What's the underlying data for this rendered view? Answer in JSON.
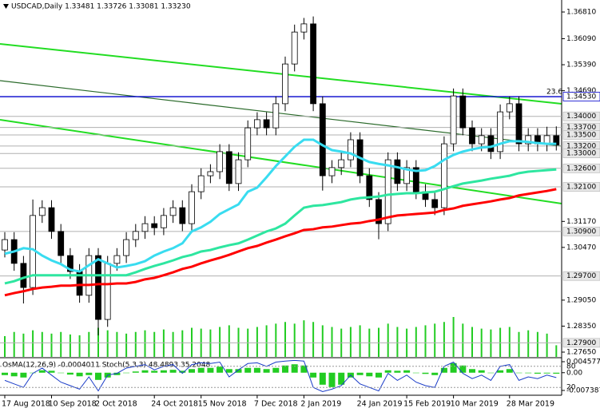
{
  "chart_data": {
    "type": "candlestick",
    "title": "USDCAD,Daily  1.33481 1.33726 1.33081 1.33230",
    "indicator_title": "OsMA(12,26,9) -0.0004011  Stoch(5,3,3) 48.4893 35.2048",
    "fib_label": "23.6",
    "categories": [
      "17 Aug 2018",
      null,
      null,
      null,
      null,
      "10 Sep 2018",
      null,
      null,
      null,
      null,
      "2 Oct 2018",
      null,
      null,
      null,
      null,
      null,
      "24 Oct 2018",
      null,
      null,
      null,
      null,
      "15 Nov 2018",
      null,
      null,
      null,
      null,
      null,
      "7 Dec 2018",
      null,
      null,
      null,
      null,
      "2 Jan 2019",
      null,
      null,
      null,
      null,
      null,
      "24 Jan 2019",
      null,
      null,
      null,
      null,
      "15 Feb 2019",
      null,
      null,
      null,
      null,
      "10 Mar 2019",
      null,
      null,
      null,
      null,
      null,
      "28 Mar 2019",
      null,
      null,
      null,
      null,
      null
    ],
    "open": [
      1.304,
      1.3068,
      1.3004,
      1.2939,
      1.3133,
      1.3154,
      1.309,
      1.3025,
      1.2982,
      1.2918,
      1.3025,
      1.2853,
      1.3004,
      1.3025,
      1.3068,
      1.309,
      1.3111,
      1.31,
      1.3133,
      1.3154,
      1.3111,
      1.3197,
      1.324,
      1.3251,
      1.3305,
      1.3219,
      1.3283,
      1.3369,
      1.3391,
      1.3369,
      1.3434,
      1.3541,
      1.3627,
      1.3649,
      1.3434,
      1.324,
      1.3262,
      1.3283,
      1.3337,
      1.324,
      1.3176,
      1.3111,
      1.3283,
      1.3219,
      1.3262,
      1.3197,
      1.3176,
      1.3154,
      1.3326,
      1.3455,
      1.3369,
      1.3326,
      1.3348,
      1.3305,
      1.3412,
      1.3434,
      1.3326,
      1.3348,
      1.3326,
      1.3348
    ],
    "high": [
      1.3088,
      1.3088,
      1.3024,
      1.3176,
      1.3174,
      1.3174,
      1.311,
      1.3045,
      1.3002,
      1.3045,
      1.3045,
      1.3024,
      1.3045,
      1.3088,
      1.311,
      1.3131,
      1.3131,
      1.3153,
      1.3174,
      1.3174,
      1.3217,
      1.326,
      1.3271,
      1.3325,
      1.3325,
      1.3303,
      1.3389,
      1.3411,
      1.3411,
      1.3454,
      1.3561,
      1.3647,
      1.3665,
      1.3669,
      1.3454,
      1.3282,
      1.3303,
      1.3357,
      1.3357,
      1.326,
      1.3196,
      1.3303,
      1.3303,
      1.3282,
      1.3282,
      1.3217,
      1.3196,
      1.3346,
      1.3475,
      1.3475,
      1.3389,
      1.3368,
      1.3368,
      1.3432,
      1.3454,
      1.3454,
      1.3368,
      1.3368,
      1.3372,
      1.3373
    ],
    "low": [
      1.302,
      1.2984,
      1.2896,
      1.2919,
      1.3113,
      1.307,
      1.3005,
      1.2962,
      1.2898,
      1.2898,
      1.281,
      1.2833,
      1.2984,
      1.3005,
      1.3048,
      1.307,
      1.308,
      1.308,
      1.3113,
      1.3091,
      1.3091,
      1.3177,
      1.322,
      1.3231,
      1.3199,
      1.3199,
      1.3263,
      1.3349,
      1.3349,
      1.3349,
      1.3414,
      1.3521,
      1.3607,
      1.3414,
      1.32,
      1.322,
      1.3242,
      1.3263,
      1.322,
      1.3156,
      1.3069,
      1.3091,
      1.3199,
      1.3199,
      1.3177,
      1.3156,
      1.3134,
      1.3134,
      1.3306,
      1.3349,
      1.3306,
      1.3306,
      1.3285,
      1.3285,
      1.3392,
      1.3306,
      1.3306,
      1.3306,
      1.3306,
      1.3308
    ],
    "close": [
      1.3068,
      1.3004,
      1.2939,
      1.3133,
      1.3154,
      1.309,
      1.3025,
      1.2982,
      1.2918,
      1.3025,
      1.2853,
      1.3004,
      1.3025,
      1.3068,
      1.309,
      1.3111,
      1.31,
      1.3133,
      1.3154,
      1.3111,
      1.3197,
      1.324,
      1.3251,
      1.3305,
      1.3219,
      1.3283,
      1.3369,
      1.3391,
      1.3369,
      1.3434,
      1.3541,
      1.3627,
      1.3649,
      1.3434,
      1.324,
      1.3262,
      1.3283,
      1.3337,
      1.324,
      1.3176,
      1.3111,
      1.3283,
      1.3219,
      1.3262,
      1.3197,
      1.3176,
      1.3154,
      1.3326,
      1.3455,
      1.3369,
      1.3326,
      1.3348,
      1.3305,
      1.3412,
      1.3434,
      1.3326,
      1.3348,
      1.3326,
      1.3348,
      1.3323
    ],
    "candle_up_color": "#ffffff",
    "candle_down_color": "#000000",
    "series": [
      {
        "color": "#39dcf0",
        "values": [
          1.303,
          1.3036,
          1.3045,
          1.3042,
          1.3025,
          1.3012,
          1.3002,
          1.2987,
          1.2982,
          1.2999,
          1.3015,
          1.3004,
          1.2993,
          1.2997,
          1.3002,
          1.301,
          1.3025,
          1.3036,
          1.3045,
          1.3058,
          1.309,
          1.3101,
          1.3116,
          1.3137,
          1.315,
          1.3163,
          1.3197,
          1.3208,
          1.3236,
          1.3266,
          1.3292,
          1.3318,
          1.3337,
          1.3337,
          1.3322,
          1.3309,
          1.3305,
          1.33,
          1.3288,
          1.3277,
          1.3272,
          1.3268,
          1.3263,
          1.3257,
          1.3253,
          1.3255,
          1.3266,
          1.3283,
          1.3296,
          1.3305,
          1.3311,
          1.3316,
          1.3318,
          1.3326,
          1.3333,
          1.3333,
          1.3331,
          1.3328,
          1.3326,
          1.3326
        ]
      },
      {
        "color": "#2ee6a0",
        "values": [
          1.295,
          1.2956,
          1.2965,
          1.2972,
          1.2972,
          1.2972,
          1.2972,
          1.2972,
          1.2972,
          1.2972,
          1.2972,
          1.2972,
          1.2972,
          1.2972,
          1.298,
          1.2989,
          1.2997,
          1.3004,
          1.3012,
          1.3021,
          1.3027,
          1.3036,
          1.304,
          1.3047,
          1.3053,
          1.3058,
          1.3068,
          1.3079,
          1.309,
          1.3098,
          1.3111,
          1.3133,
          1.3154,
          1.3159,
          1.3161,
          1.3165,
          1.3169,
          1.3176,
          1.318,
          1.3182,
          1.3184,
          1.3189,
          1.3191,
          1.3193,
          1.3193,
          1.3195,
          1.3197,
          1.3204,
          1.3212,
          1.3219,
          1.3223,
          1.3227,
          1.3232,
          1.3236,
          1.324,
          1.3247,
          1.3251,
          1.3253,
          1.3255,
          1.3257
        ]
      },
      {
        "color": "#ff0000",
        "values": [
          1.2918,
          1.2924,
          1.2929,
          1.2935,
          1.2939,
          1.2941,
          1.2944,
          1.2944,
          1.2946,
          1.2946,
          1.2948,
          1.2948,
          1.295,
          1.295,
          1.2954,
          1.2961,
          1.2965,
          1.2972,
          1.298,
          1.2989,
          1.2995,
          1.3004,
          1.3012,
          1.3019,
          1.3027,
          1.3036,
          1.3045,
          1.3051,
          1.306,
          1.3068,
          1.3077,
          1.3085,
          1.3094,
          1.3096,
          1.3101,
          1.3103,
          1.3107,
          1.3111,
          1.3113,
          1.3118,
          1.3122,
          1.3128,
          1.3133,
          1.3135,
          1.3137,
          1.3139,
          1.3141,
          1.3148,
          1.3152,
          1.3159,
          1.3163,
          1.3167,
          1.3171,
          1.3176,
          1.318,
          1.3187,
          1.3191,
          1.3195,
          1.3199,
          1.3204
        ]
      }
    ],
    "volume": {
      "color": "#22cc22",
      "values": [
        25,
        30,
        28,
        32,
        30,
        28,
        30,
        27,
        26,
        30,
        35,
        32,
        30,
        28,
        30,
        32,
        30,
        33,
        30,
        32,
        35,
        34,
        33,
        36,
        38,
        35,
        34,
        36,
        38,
        40,
        42,
        40,
        44,
        42,
        38,
        36,
        34,
        36,
        38,
        34,
        35,
        40,
        36,
        34,
        36,
        38,
        40,
        42,
        48,
        40,
        36,
        34,
        33,
        35,
        36,
        30,
        32,
        30,
        28,
        14
      ]
    },
    "ylim": [
      1.27521,
      1.37133
    ],
    "yticks": [
      {
        "value": 1.3681,
        "label": "1.36810"
      },
      {
        "value": 1.3609,
        "label": "1.36090"
      },
      {
        "value": 1.3539,
        "label": "1.35390"
      },
      {
        "value": 1.3469,
        "label": "1.34690"
      },
      {
        "value": 1.3117,
        "label": "1.31170"
      },
      {
        "value": 1.3047,
        "label": "1.30470"
      },
      {
        "value": 1.2905,
        "label": "1.29050"
      },
      {
        "value": 1.2835,
        "label": "1.28350"
      },
      {
        "value": 1.2765,
        "label": "1.27650"
      }
    ],
    "levels": [
      {
        "value": 1.34,
        "label": "1.34000"
      },
      {
        "value": 1.337,
        "label": "1.33700"
      },
      {
        "value": 1.335,
        "label": "1.33500"
      },
      {
        "value": 1.332,
        "label": "1.33200"
      },
      {
        "value": 1.33,
        "label": "1.33000"
      },
      {
        "value": 1.326,
        "label": "1.32600"
      },
      {
        "value": 1.321,
        "label": "1.32100"
      },
      {
        "value": 1.309,
        "label": "1.30900"
      },
      {
        "value": 1.297,
        "label": "1.29700"
      },
      {
        "value": 1.279,
        "label": "1.27900"
      }
    ],
    "level_color": "#b0b0b0",
    "highlight_level": {
      "value": 1.3453,
      "label": "1.34530",
      "color": "#0000cc"
    },
    "osma": {
      "color": "#22cc22",
      "values": [
        -0.001,
        -0.0015,
        -0.002,
        0,
        0.001,
        0.0008,
        0,
        -0.0008,
        -0.0015,
        -0.001,
        -0.003,
        -0.002,
        -0.001,
        0,
        0.0005,
        0.001,
        0.0008,
        0.001,
        0.0012,
        0.0008,
        0.0015,
        0.002,
        0.002,
        0.0025,
        0.0015,
        0.0015,
        0.002,
        0.002,
        0.0015,
        0.002,
        0.003,
        0.0035,
        0.003,
        -0.002,
        -0.005,
        -0.006,
        -0.005,
        -0.002,
        -0.001,
        -0.0015,
        -0.002,
        0.001,
        0.0008,
        0.001,
        0,
        -0.0005,
        -0.001,
        0.002,
        0.004,
        0.003,
        0.0015,
        0.001,
        0,
        0.001,
        0.0015,
        0,
        -0.0002,
        -0.0004,
        -0.0003,
        -0.0004
      ]
    },
    "osma_ylim": [
      -0.0073875,
      0.0045775
    ],
    "osma_ticks": [
      0.0045775,
      {
        "value": 0,
        "label": "0.00"
      },
      -0.0073875
    ],
    "stoch": {
      "color": "#1a3cc8",
      "values": [
        40,
        30,
        20,
        60,
        75,
        55,
        35,
        25,
        15,
        50,
        10,
        55,
        60,
        75,
        80,
        85,
        70,
        80,
        85,
        60,
        85,
        90,
        88,
        92,
        50,
        70,
        88,
        90,
        80,
        92,
        95,
        97,
        95,
        20,
        8,
        15,
        25,
        55,
        30,
        20,
        10,
        60,
        40,
        55,
        35,
        25,
        20,
        80,
        92,
        60,
        45,
        55,
        40,
        80,
        85,
        40,
        50,
        45,
        55,
        48
      ]
    },
    "stoch_ylim": [
      0,
      100
    ],
    "stoch_ticks": [
      80,
      20
    ]
  }
}
